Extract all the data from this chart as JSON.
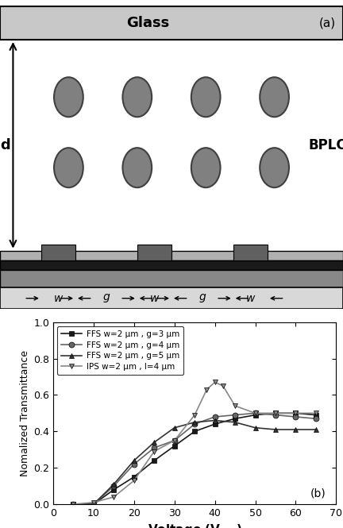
{
  "diagram": {
    "glass_label": "Glass",
    "bplc_label": "BPLC",
    "d_label": "d",
    "w_label": "w",
    "g_label": "g",
    "panel_label": "(a)",
    "glass_color": "#c8c8c8",
    "electrode_color": "#606060",
    "substrate_top_color": "#303030",
    "substrate_bot_color": "#909090",
    "strip_color": "#d0d0d0",
    "circle_color": "#808080",
    "circle_edge": "#404040"
  },
  "plot": {
    "panel_label": "(b)",
    "xlabel": "Voltage (V$_{rms}$)",
    "ylabel": "Nomalized Transmittance",
    "xlim": [
      0,
      70
    ],
    "ylim": [
      0.0,
      1.0
    ],
    "xticks": [
      0,
      10,
      20,
      30,
      40,
      50,
      60,
      70
    ],
    "yticks": [
      0.0,
      0.2,
      0.4,
      0.6,
      0.8,
      1.0
    ],
    "series": [
      {
        "label": "FFS w=2 μm , g=3 μm",
        "color": "#1a1a1a",
        "marker": "s",
        "markersize": 5,
        "x": [
          5,
          10,
          15,
          20,
          25,
          30,
          35,
          40,
          45,
          50,
          55,
          60,
          65
        ],
        "y": [
          0.0,
          0.0,
          0.08,
          0.15,
          0.24,
          0.32,
          0.4,
          0.44,
          0.47,
          0.49,
          0.5,
          0.5,
          0.49
        ]
      },
      {
        "label": "FFS w=2 μm , g=4 μm",
        "color": "#666666",
        "marker": "o",
        "markersize": 5,
        "x": [
          5,
          10,
          15,
          20,
          25,
          30,
          35,
          40,
          45,
          50,
          55,
          60,
          65
        ],
        "y": [
          0.0,
          0.0,
          0.1,
          0.22,
          0.31,
          0.35,
          0.44,
          0.48,
          0.49,
          0.5,
          0.49,
          0.48,
          0.47
        ]
      },
      {
        "label": "FFS w=2 μm , g=5 μm",
        "color": "#333333",
        "marker": "^",
        "markersize": 5,
        "x": [
          5,
          10,
          15,
          20,
          25,
          30,
          35,
          40,
          45,
          50,
          55,
          60,
          65
        ],
        "y": [
          0.0,
          0.0,
          0.11,
          0.24,
          0.34,
          0.42,
          0.45,
          0.46,
          0.45,
          0.42,
          0.41,
          0.41,
          0.41
        ]
      },
      {
        "label": "IPS w=2 μm , l=4 μm",
        "color": "#888888",
        "marker": "v",
        "markersize": 5,
        "x": [
          5,
          10,
          15,
          20,
          25,
          30,
          35,
          38,
          40,
          42,
          45,
          50,
          55,
          60,
          65
        ],
        "y": [
          0.0,
          0.01,
          0.04,
          0.13,
          0.29,
          0.35,
          0.49,
          0.63,
          0.67,
          0.65,
          0.54,
          0.5,
          0.5,
          0.5,
          0.5
        ]
      }
    ]
  }
}
